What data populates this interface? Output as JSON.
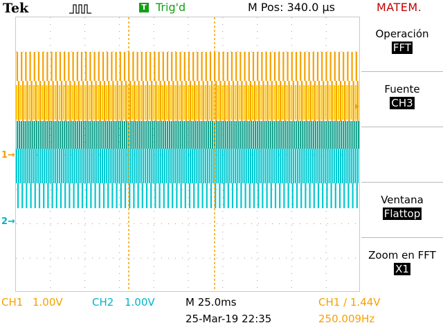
{
  "header": {
    "brand": "Tek",
    "run_icon": "pulse-run-icon",
    "trigger_badge": "T",
    "trigger_status": "Trig'd",
    "position": "M Pos: 340.0 µs",
    "mode": "MATEM."
  },
  "markers": {
    "ch1": "1→",
    "ch2": "2→",
    "trigger_position": "▼"
  },
  "menu": {
    "items": [
      {
        "label": "Operación",
        "value": "FFT"
      },
      {
        "label": "Fuente",
        "value": "CH3"
      },
      {
        "label": "",
        "value": ""
      },
      {
        "label": "Ventana",
        "value": "Flattop"
      },
      {
        "label": "Zoom en FFT",
        "value": "X1"
      }
    ]
  },
  "status": {
    "ch1": "CH1",
    "ch1_scale": "1.00V",
    "ch2": "CH2",
    "ch2_scale": "1.00V",
    "timebase": "M 25.0ms",
    "date": "25-Mar-19 22:35",
    "trigger_source": "CH1 ∕ 1.44V",
    "frequency": "250.009Hz"
  },
  "colors": {
    "ch1": "#f5a000",
    "ch1_bright": "#ffcc00",
    "ch2": "#00c8d0",
    "overlap": "#14a08c",
    "status_green": "#14a014",
    "mode_red": "#c00000"
  }
}
